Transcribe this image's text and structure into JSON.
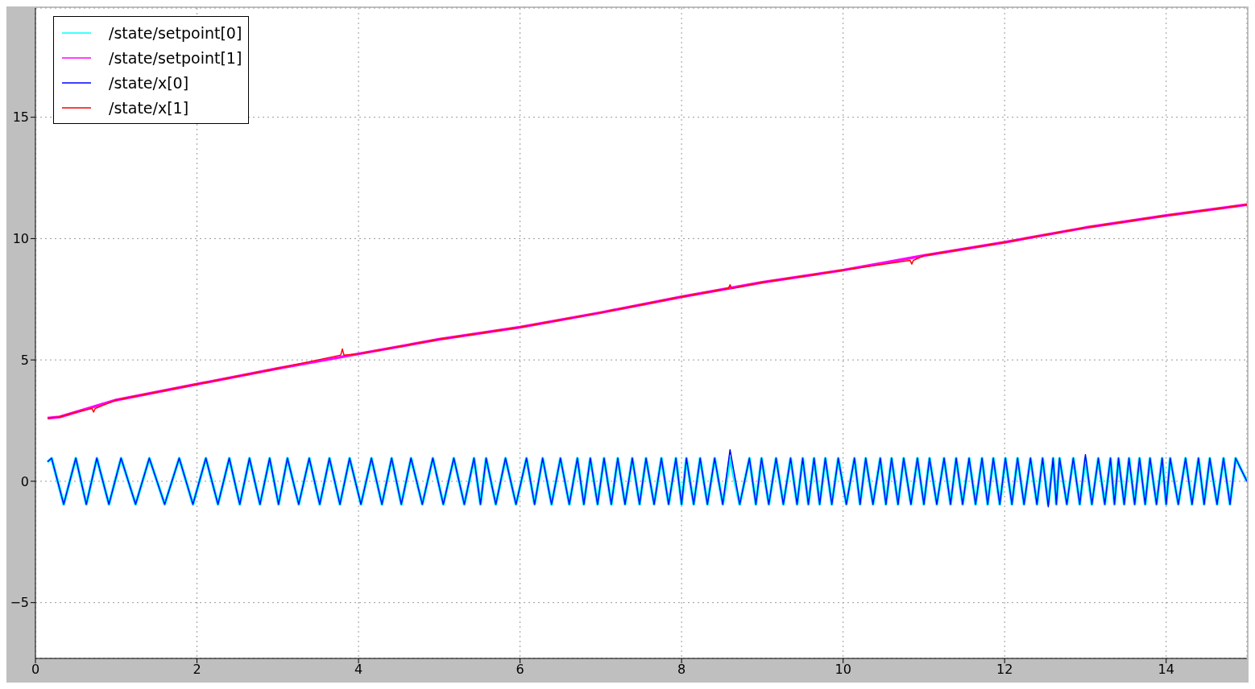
{
  "chart_data": {
    "type": "line",
    "xlim": [
      0,
      15
    ],
    "xticks": [
      0,
      2,
      4,
      6,
      8,
      10,
      12,
      14
    ],
    "ylim": [
      -7.3,
      19.5
    ],
    "yticks": [
      -5,
      0,
      5,
      10,
      15
    ],
    "grid": true,
    "legend": "top left",
    "marker": "none",
    "line_style": "solid",
    "x": [
      0.15,
      0.2,
      0.35,
      0.5,
      0.63,
      0.76,
      0.91,
      1.06,
      1.24,
      1.41,
      1.6,
      1.78,
      1.95,
      2.11,
      2.26,
      2.4,
      2.53,
      2.65,
      2.78,
      2.9,
      3.01,
      3.12,
      3.26,
      3.39,
      3.52,
      3.64,
      3.77,
      3.89,
      4.03,
      4.16,
      4.29,
      4.41,
      4.53,
      4.65,
      4.79,
      4.92,
      5.05,
      5.18,
      5.31,
      5.43,
      5.51,
      5.58,
      5.7,
      5.82,
      5.95,
      6.08,
      6.18,
      6.28,
      6.39,
      6.5,
      6.61,
      6.71,
      6.79,
      6.87,
      6.96,
      7.04,
      7.13,
      7.21,
      7.3,
      7.39,
      7.48,
      7.56,
      7.66,
      7.75,
      7.84,
      7.93,
      8.0,
      8.06,
      8.15,
      8.23,
      8.32,
      8.41,
      8.51,
      8.6,
      8.72,
      8.84,
      8.92,
      8.99,
      9.08,
      9.17,
      9.26,
      9.35,
      9.43,
      9.5,
      9.57,
      9.64,
      9.71,
      9.78,
      9.86,
      9.94,
      10.04,
      10.14,
      10.21,
      10.28,
      10.37,
      10.46,
      10.53,
      10.6,
      10.68,
      10.75,
      10.84,
      10.92,
      11.0,
      11.07,
      11.16,
      11.25,
      11.33,
      11.4,
      11.48,
      11.56,
      11.64,
      11.72,
      11.79,
      11.86,
      11.94,
      12.01,
      12.09,
      12.16,
      12.24,
      12.32,
      12.4,
      12.47,
      12.54,
      12.6,
      12.64,
      12.68,
      12.77,
      12.85,
      12.93,
      13.0,
      13.08,
      13.16,
      13.24,
      13.31,
      13.36,
      13.41,
      13.48,
      13.54,
      13.61,
      13.67,
      13.74,
      13.8,
      13.88,
      13.95,
      14.0,
      14.05,
      14.15,
      14.24,
      14.32,
      14.4,
      14.47,
      14.54,
      14.63,
      14.71,
      14.79,
      14.86,
      15.0
    ],
    "series": [
      {
        "name": "/state/setpoint[0]",
        "color": "#00ffff",
        "values": [
          0.8,
          0.95,
          -0.95,
          0.95,
          -0.95,
          0.95,
          -0.95,
          0.95,
          -0.95,
          0.95,
          -0.95,
          0.95,
          -0.95,
          0.95,
          -0.95,
          0.95,
          -0.95,
          0.95,
          -0.95,
          0.95,
          -0.95,
          0.95,
          -0.95,
          0.95,
          -0.95,
          0.95,
          -0.95,
          0.95,
          -0.95,
          0.95,
          -0.95,
          0.95,
          -0.95,
          0.95,
          -0.95,
          0.95,
          -0.95,
          0.95,
          -0.95,
          0.95,
          -0.95,
          0.95,
          -0.95,
          0.95,
          -0.95,
          0.95,
          -0.95,
          0.95,
          -0.95,
          0.95,
          -0.95,
          0.95,
          -0.95,
          0.95,
          -0.95,
          0.95,
          -0.95,
          0.95,
          -0.95,
          0.95,
          -0.95,
          0.95,
          -0.95,
          0.95,
          -0.95,
          0.95,
          -0.95,
          0.95,
          -0.95,
          0.95,
          -0.95,
          0.95,
          -0.95,
          0.95,
          -0.95,
          0.95,
          -0.95,
          0.95,
          -0.95,
          0.95,
          -0.95,
          0.95,
          -0.95,
          0.95,
          -0.95,
          0.95,
          -0.95,
          0.95,
          -0.95,
          0.95,
          -0.95,
          0.95,
          -0.95,
          0.95,
          -0.95,
          0.95,
          -0.95,
          0.95,
          -0.95,
          0.95,
          -0.95,
          0.95,
          -0.95,
          0.95,
          -0.95,
          0.95,
          -0.95,
          0.95,
          -0.95,
          0.95,
          -0.95,
          0.95,
          -0.95,
          0.95,
          -0.95,
          0.95,
          -0.95,
          0.95,
          -0.95,
          0.95,
          -0.95,
          0.95,
          -0.95,
          0.95,
          -0.95,
          0.95,
          -0.95,
          0.95,
          -0.95,
          0.95,
          -0.95,
          0.95,
          -0.95,
          0.95,
          -0.95,
          0.95,
          -0.95,
          0.95,
          -0.95,
          0.95,
          -0.95,
          0.95,
          -0.95,
          0.95,
          -0.95,
          0.95,
          -0.95,
          0.95,
          -0.95,
          0.95,
          -0.95,
          0.95,
          -0.95,
          0.95,
          -0.95,
          0.95,
          0
        ]
      },
      {
        "name": "/state/setpoint[1]",
        "color": "#ff00ff",
        "x": [
          0.15,
          0.3,
          0.5,
          1,
          2,
          3,
          4,
          5,
          6,
          7,
          8,
          9,
          10,
          11,
          12,
          13,
          14,
          15
        ],
        "values": [
          2.6,
          2.65,
          2.85,
          3.35,
          4.0,
          4.65,
          5.25,
          5.85,
          6.35,
          6.95,
          7.6,
          8.2,
          8.7,
          9.3,
          9.85,
          10.45,
          10.95,
          11.4
        ]
      },
      {
        "name": "/state/x[0]",
        "color": "#0000ff",
        "values": [
          0.8,
          0.95,
          -0.95,
          0.95,
          -0.95,
          0.95,
          -0.95,
          0.95,
          -0.95,
          0.95,
          -0.95,
          0.95,
          -0.95,
          0.95,
          -0.95,
          0.95,
          -0.95,
          0.95,
          -0.95,
          0.95,
          -0.95,
          0.95,
          -0.95,
          0.95,
          -0.95,
          0.95,
          -0.95,
          0.95,
          -0.95,
          0.95,
          -0.95,
          0.95,
          -0.95,
          0.95,
          -0.95,
          0.95,
          -0.95,
          0.95,
          -0.95,
          0.95,
          -0.95,
          0.95,
          -0.95,
          0.95,
          -0.95,
          0.95,
          -0.95,
          0.95,
          -0.95,
          0.95,
          -0.95,
          0.95,
          -0.95,
          0.95,
          -0.95,
          0.95,
          -0.95,
          0.95,
          -0.95,
          0.95,
          -0.95,
          0.95,
          -0.95,
          0.95,
          -0.95,
          0.95,
          -0.95,
          0.95,
          -0.95,
          0.95,
          -0.95,
          0.95,
          -0.95,
          1.3,
          -0.95,
          0.95,
          -0.95,
          0.95,
          -0.95,
          0.95,
          -0.95,
          0.95,
          -0.95,
          0.95,
          -0.95,
          0.95,
          -0.95,
          0.95,
          -0.95,
          0.95,
          -0.95,
          0.95,
          -0.95,
          0.95,
          -0.95,
          0.95,
          -0.95,
          0.95,
          -0.95,
          0.95,
          -0.95,
          0.95,
          -0.95,
          0.95,
          -0.95,
          0.95,
          -0.95,
          0.95,
          -0.95,
          0.95,
          -0.95,
          0.95,
          -0.95,
          0.95,
          -0.95,
          0.95,
          -0.95,
          0.95,
          -0.95,
          0.95,
          -0.95,
          0.95,
          -1.05,
          0.95,
          -0.95,
          0.95,
          -0.95,
          0.95,
          -0.95,
          1.1,
          -0.95,
          0.95,
          -0.95,
          0.95,
          -0.95,
          0.95,
          -0.95,
          0.95,
          -0.95,
          0.95,
          -0.95,
          0.95,
          -0.95,
          0.95,
          -0.95,
          0.95,
          -0.95,
          0.95,
          -0.95,
          0.95,
          -0.95,
          0.95,
          -0.95,
          0.95,
          -0.95,
          0.95,
          0
        ]
      },
      {
        "name": "/state/x[1]",
        "color": "#ff0000",
        "x": [
          0.15,
          0.3,
          0.5,
          0.7,
          0.72,
          0.74,
          1,
          2,
          3,
          3.78,
          3.8,
          3.82,
          4,
          5,
          6,
          7,
          8,
          8.58,
          8.6,
          8.62,
          9,
          10,
          10.83,
          10.85,
          10.87,
          11,
          12,
          13,
          14,
          15
        ],
        "values": [
          2.6,
          2.65,
          2.85,
          3.0,
          2.85,
          3.0,
          3.35,
          4.0,
          4.65,
          5.2,
          5.45,
          5.2,
          5.25,
          5.85,
          6.35,
          6.95,
          7.6,
          7.95,
          8.1,
          7.95,
          8.2,
          8.7,
          9.1,
          8.95,
          9.1,
          9.3,
          9.85,
          10.45,
          10.95,
          11.4
        ]
      }
    ]
  }
}
